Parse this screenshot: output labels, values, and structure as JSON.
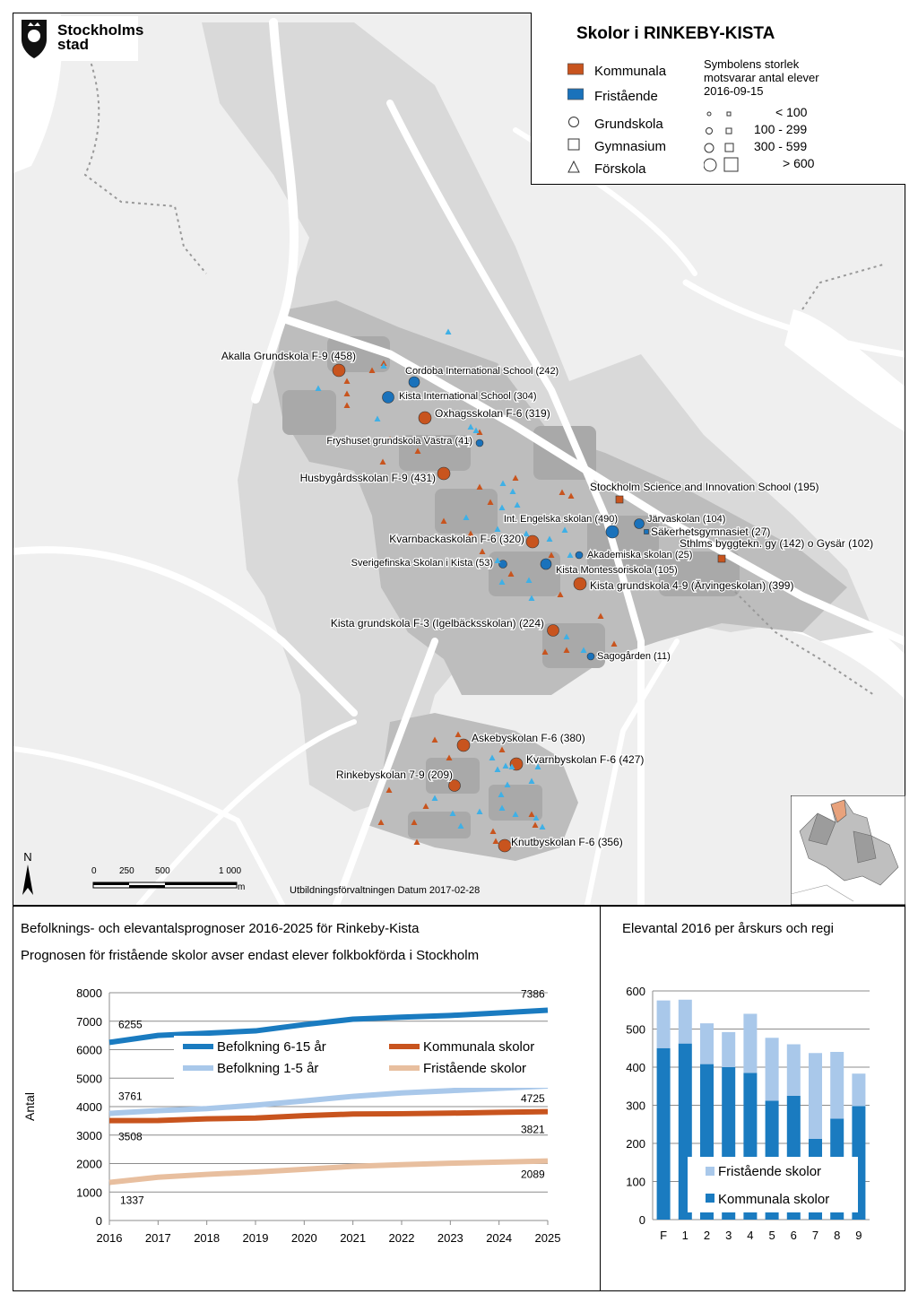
{
  "logo": {
    "line1": "Stockholms",
    "line2": "stad"
  },
  "legend": {
    "title": "Skolor i RINKEBY-KISTA",
    "regi": [
      {
        "label": "Kommunala",
        "color": "#c8541e"
      },
      {
        "label": "Fristående",
        "color": "#1a72bb"
      }
    ],
    "types": [
      {
        "label": "Grundskola",
        "icon": "circle-icon"
      },
      {
        "label": "Gymnasium",
        "icon": "square-icon"
      },
      {
        "label": "Förskola",
        "icon": "triangle-icon"
      }
    ],
    "size_note": [
      "Symbolens storlek",
      "motsvarar antal elever",
      "2016-09-15"
    ],
    "size_classes": [
      "< 100",
      "100 - 299",
      "300 - 599",
      "> 600"
    ]
  },
  "map": {
    "compass": "N",
    "scale_labels": [
      "0",
      "250",
      "500",
      "1 000"
    ],
    "scale_unit": "m",
    "attribution": "Utbildningsförvaltningen Datum 2017-02-28",
    "schools": [
      {
        "label": "Akalla Grundskola F-9 (458)",
        "regi": "kommunal",
        "type": "grundskola"
      },
      {
        "label": "Cordoba International School (242)",
        "regi": "fristaende",
        "type": "grundskola"
      },
      {
        "label": "Kista International School (304)",
        "regi": "fristaende",
        "type": "grundskola"
      },
      {
        "label": "Oxhagsskolan F-6 (319)",
        "regi": "kommunal",
        "type": "grundskola"
      },
      {
        "label": "Fryshuset grundskola Västra (41)",
        "regi": "fristaende",
        "type": "grundskola"
      },
      {
        "label": "Husbygårdsskolan F-9 (431)",
        "regi": "kommunal",
        "type": "grundskola"
      },
      {
        "label": "Stockholm Science and Innovation School (195)",
        "regi": "kommunal",
        "type": "gymnasium"
      },
      {
        "label": "Int. Engelska skolan (490)",
        "regi": "fristaende",
        "type": "grundskola"
      },
      {
        "label": "Järvaskolan (104)",
        "regi": "fristaende",
        "type": "grundskola"
      },
      {
        "label": "Säkerhetsgymnasiet (27)",
        "regi": "fristaende",
        "type": "gymnasium"
      },
      {
        "label": "Sthlms byggtekn. gy (142) o Gysär (102)",
        "regi": "kommunal",
        "type": "gymnasium"
      },
      {
        "label": "Kvarnbackaskolan F-6 (320)",
        "regi": "kommunal",
        "type": "grundskola"
      },
      {
        "label": "Akademiska skolan (25)",
        "regi": "fristaende",
        "type": "grundskola"
      },
      {
        "label": "Sverigefinska Skolan i Kista (53)",
        "regi": "fristaende",
        "type": "grundskola"
      },
      {
        "label": "Kista Montessoriskola (105)",
        "regi": "fristaende",
        "type": "grundskola"
      },
      {
        "label": "Kista grundskola 4-9 (Ärvingeskolan) (399)",
        "regi": "kommunal",
        "type": "grundskola"
      },
      {
        "label": "Kista grundskola F-3 (Igelbäcksskolan) (224)",
        "regi": "kommunal",
        "type": "grundskola"
      },
      {
        "label": "Sagogården (11)",
        "regi": "fristaende",
        "type": "grundskola"
      },
      {
        "label": "Askebyskolan F-6 (380)",
        "regi": "kommunal",
        "type": "grundskola"
      },
      {
        "label": "Kvarnbyskolan F-6 (427)",
        "regi": "kommunal",
        "type": "grundskola"
      },
      {
        "label": "Rinkebyskolan 7-9 (209)",
        "regi": "kommunal",
        "type": "grundskola"
      },
      {
        "label": "Knutbyskolan F-6 (356)",
        "regi": "kommunal",
        "type": "grundskola"
      }
    ]
  },
  "colors": {
    "kommunal": "#c8541e",
    "fristaende": "#1a72bb",
    "forskola_fristaende": "#3fb0e6",
    "befolkning_6_15": "#1a7bc0",
    "befolkning_1_5": "#a9c8ea",
    "kommunala_skolor_line": "#c8541e",
    "fristaende_skolor_line": "#e8bf9f",
    "bar_kommunala": "#1a7bc0",
    "bar_fristaende": "#a9c8ea"
  },
  "chart_data": [
    {
      "type": "line",
      "title": "Befolknings- och elevantalsprognoser 2016-2025 för Rinkeby-Kista",
      "subtitle": "Prognosen för fristående skolor avser endast elever folkbokförda i Stockholm",
      "xlabel": "",
      "ylabel": "Antal",
      "x": [
        2016,
        2017,
        2018,
        2019,
        2020,
        2021,
        2022,
        2023,
        2024,
        2025
      ],
      "ylim": [
        0,
        8000
      ],
      "yticks": [
        0,
        1000,
        2000,
        3000,
        4000,
        5000,
        6000,
        7000,
        8000
      ],
      "grid": true,
      "legend_position": "inside upper middle",
      "series": [
        {
          "name": "Befolkning 6-15 år",
          "values": [
            6255,
            6500,
            6580,
            6660,
            6880,
            7070,
            7140,
            7200,
            7290,
            7386
          ]
        },
        {
          "name": "Kommunala skolor",
          "values": [
            3508,
            3510,
            3570,
            3600,
            3680,
            3740,
            3750,
            3770,
            3800,
            3821
          ]
        },
        {
          "name": "Befolkning 1-5 år",
          "values": [
            3761,
            3860,
            3930,
            4050,
            4200,
            4360,
            4480,
            4560,
            4640,
            4725
          ]
        },
        {
          "name": "Fristående skolor",
          "values": [
            1337,
            1520,
            1620,
            1700,
            1800,
            1900,
            1960,
            2010,
            2050,
            2089
          ]
        }
      ],
      "data_labels": [
        "6255",
        "7386",
        "3761",
        "4725",
        "3508",
        "3821",
        "1337",
        "2089"
      ]
    },
    {
      "type": "bar",
      "stacked": true,
      "title": "Elevantal 2016 per årskurs och regi",
      "categories": [
        "F",
        "1",
        "2",
        "3",
        "4",
        "5",
        "6",
        "7",
        "8",
        "9"
      ],
      "ylim": [
        0,
        600
      ],
      "yticks": [
        0,
        100,
        200,
        300,
        400,
        500,
        600
      ],
      "grid": true,
      "legend_position": "bottom inside",
      "series": [
        {
          "name": "Kommunala skolor",
          "values": [
            450,
            462,
            408,
            400,
            385,
            312,
            325,
            212,
            265,
            298
          ]
        },
        {
          "name": "Fristående skolor",
          "values": [
            125,
            115,
            107,
            92,
            155,
            165,
            135,
            225,
            175,
            85
          ]
        }
      ]
    }
  ]
}
